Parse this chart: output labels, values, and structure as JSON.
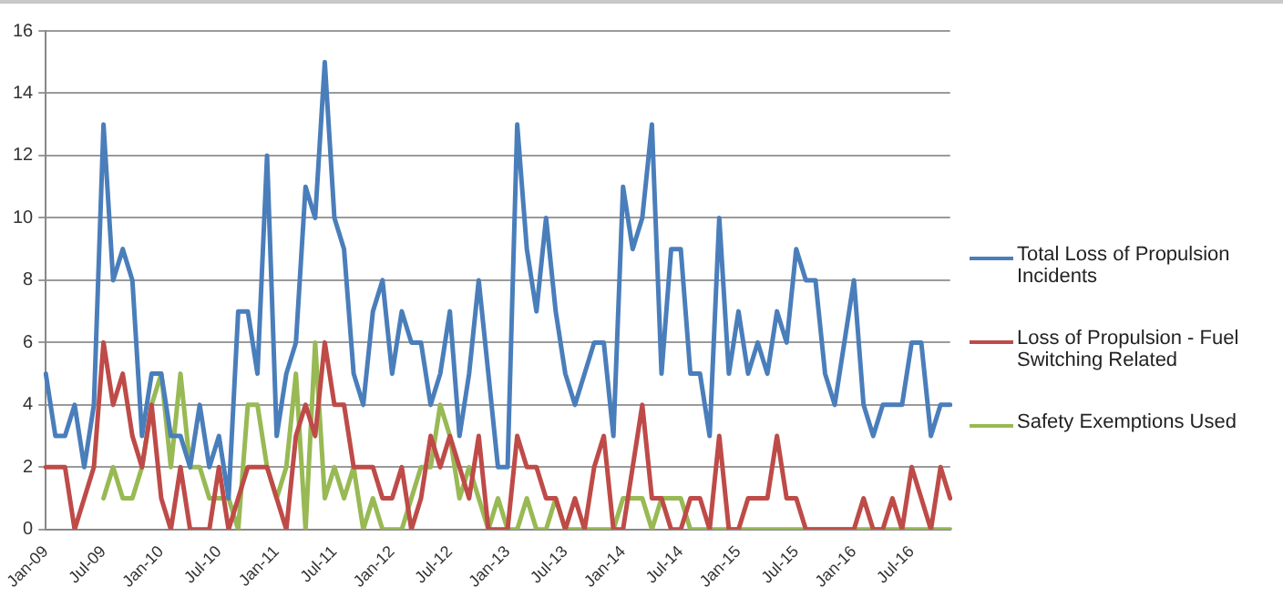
{
  "chart_data": {
    "type": "line",
    "categories": [
      "Jan-09",
      null,
      null,
      null,
      null,
      null,
      "Jul-09",
      null,
      null,
      null,
      null,
      null,
      "Jan-10",
      null,
      null,
      null,
      null,
      null,
      "Jul-10",
      null,
      null,
      null,
      null,
      null,
      "Jan-11",
      null,
      null,
      null,
      null,
      null,
      "Jul-11",
      null,
      null,
      null,
      null,
      null,
      "Jan-12",
      null,
      null,
      null,
      null,
      null,
      "Jul-12",
      null,
      null,
      null,
      null,
      null,
      "Jan-13",
      null,
      null,
      null,
      null,
      null,
      "Jul-13",
      null,
      null,
      null,
      null,
      null,
      "Jan-14",
      null,
      null,
      null,
      null,
      null,
      "Jul-14",
      null,
      null,
      null,
      null,
      null,
      "Jan-15",
      null,
      null,
      null,
      null,
      null,
      "Jul-15",
      null,
      null,
      null,
      null,
      null,
      "Jan-16",
      null,
      null,
      null,
      null,
      null,
      "Jul-16",
      null,
      null,
      null,
      null
    ],
    "series": [
      {
        "name": "Total Loss of Propulsion Incidents",
        "color": "#4a7ebb",
        "values": [
          5,
          3,
          3,
          4,
          2,
          4,
          13,
          8,
          9,
          8,
          3,
          5,
          5,
          3,
          3,
          2,
          4,
          2,
          3,
          1,
          7,
          7,
          5,
          12,
          3,
          5,
          6,
          11,
          10,
          15,
          10,
          9,
          5,
          4,
          7,
          8,
          5,
          7,
          6,
          6,
          4,
          5,
          7,
          3,
          5,
          8,
          5,
          2,
          2,
          13,
          9,
          7,
          10,
          7,
          5,
          4,
          5,
          6,
          6,
          3,
          11,
          9,
          10,
          13,
          5,
          9,
          9,
          5,
          5,
          3,
          10,
          5,
          7,
          5,
          6,
          5,
          7,
          6,
          9,
          8,
          8,
          5,
          4,
          6,
          8,
          4,
          3,
          4,
          4,
          4,
          6,
          6,
          3,
          4,
          4
        ]
      },
      {
        "name": "Loss of Propulsion - Fuel Switching Related",
        "color": "#be4b48",
        "values": [
          2,
          2,
          2,
          0,
          1,
          2,
          6,
          4,
          5,
          3,
          2,
          4,
          1,
          0,
          2,
          0,
          0,
          0,
          2,
          0,
          1,
          2,
          2,
          2,
          1,
          0,
          3,
          4,
          3,
          6,
          4,
          4,
          2,
          2,
          2,
          1,
          1,
          2,
          0,
          1,
          3,
          2,
          3,
          2,
          1,
          3,
          0,
          0,
          0,
          3,
          2,
          2,
          1,
          1,
          0,
          1,
          0,
          2,
          3,
          0,
          0,
          2,
          4,
          1,
          1,
          0,
          0,
          1,
          1,
          0,
          3,
          0,
          0,
          1,
          1,
          1,
          3,
          1,
          1,
          0,
          0,
          0,
          0,
          0,
          0,
          1,
          0,
          0,
          1,
          0,
          2,
          1,
          0,
          2,
          1
        ]
      },
      {
        "name": "Safety Exemptions Used",
        "color": "#98b954",
        "values": [
          null,
          null,
          null,
          null,
          null,
          null,
          1,
          2,
          1,
          1,
          2,
          4,
          5,
          2,
          5,
          2,
          2,
          1,
          1,
          1,
          0,
          4,
          4,
          2,
          1,
          2,
          5,
          0,
          6,
          1,
          2,
          1,
          2,
          0,
          1,
          0,
          0,
          0,
          1,
          2,
          2,
          4,
          3,
          1,
          2,
          1,
          0,
          1,
          0,
          0,
          1,
          0,
          0,
          1,
          0,
          0,
          0,
          0,
          0,
          0,
          1,
          1,
          1,
          0,
          1,
          1,
          1,
          0,
          0,
          0,
          0,
          0,
          0,
          0,
          0,
          0,
          0,
          0,
          0,
          0,
          0,
          0,
          0,
          0,
          0,
          0,
          0,
          0,
          0,
          0,
          0,
          0,
          0,
          0,
          0
        ]
      }
    ],
    "ylim": [
      0,
      16
    ],
    "yticks": [
      0,
      2,
      4,
      6,
      8,
      10,
      12,
      14,
      16
    ],
    "grid": "y",
    "legend": "right",
    "marker": "none",
    "line_style": "solid"
  }
}
